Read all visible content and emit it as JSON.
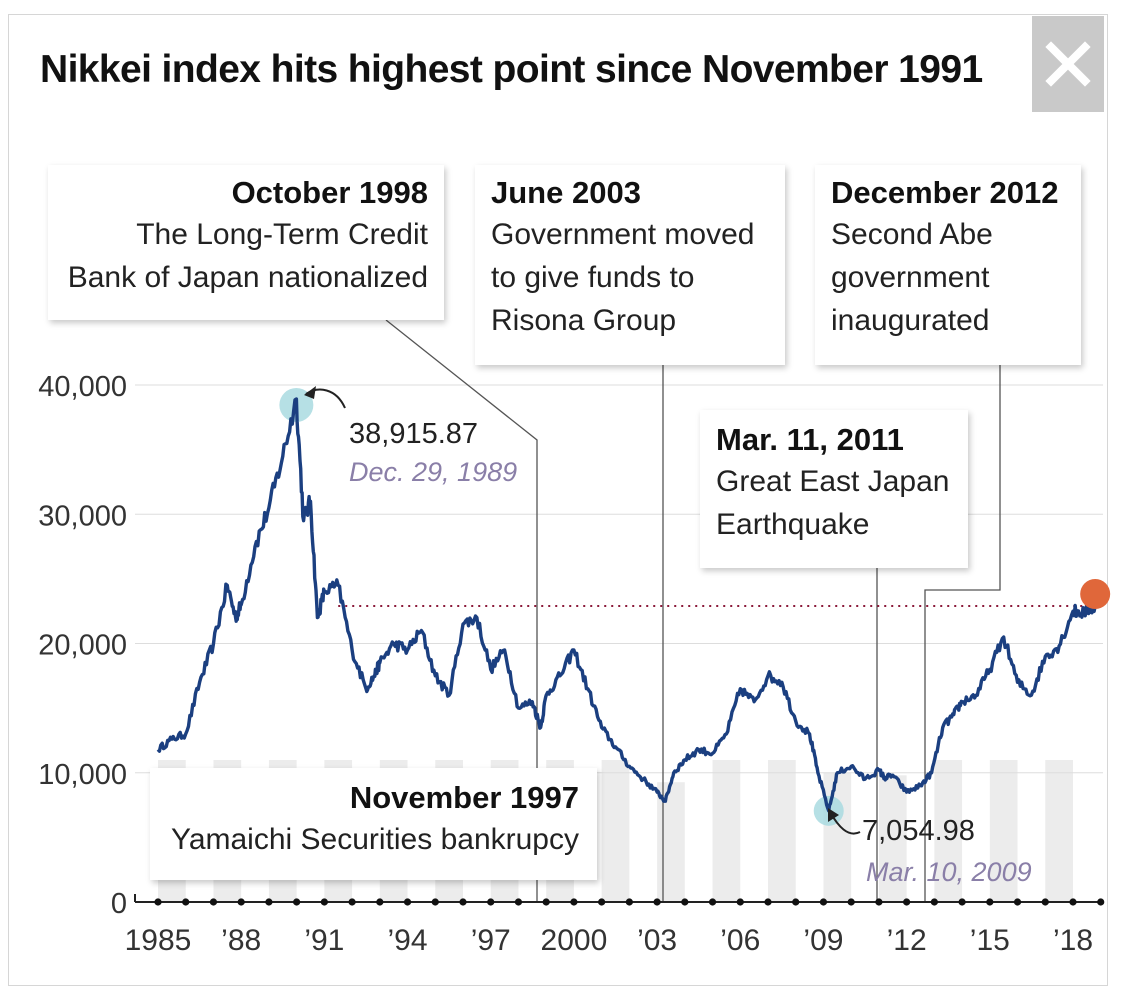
{
  "title": "Nikkei index hits highest point since November 1991",
  "close_icon": "close-icon",
  "callouts": {
    "oct1998": {
      "head": "October 1998",
      "body": "The Long-Term Credit\nBank of Japan nationalized"
    },
    "jun2003": {
      "head": "June 2003",
      "body": "Government moved\nto give funds to\nRisona Group"
    },
    "dec2012": {
      "head": "December 2012",
      "body": "Second Abe\ngovernment\ninaugurated"
    },
    "mar2011": {
      "head": "Mar. 11, 2011",
      "body": "Great East Japan\nEarthquake"
    },
    "nov1997": {
      "head": "November 1997",
      "body": "Yamaichi Securities bankrupcy"
    }
  },
  "annotations": {
    "peak": {
      "value": "38,915.87",
      "date": "Dec. 29, 1989"
    },
    "low": {
      "value": "7,054.98",
      "date": "Mar. 10, 2009"
    }
  },
  "colors": {
    "line": "#1b3f80",
    "peak_marker": "#a9dbe0",
    "current_marker": "#e0673a",
    "reference_line": "#8b1a3a",
    "year_band": "#ececec",
    "grid": "#dddddd"
  },
  "chart_data": {
    "type": "line",
    "title": "Nikkei index hits highest point since November 1991",
    "xlabel": "",
    "ylabel": "",
    "xlim": [
      1984.5,
      2019
    ],
    "ylim": [
      0,
      40000
    ],
    "y_ticks": [
      0,
      10000,
      20000,
      30000,
      40000
    ],
    "y_tick_labels": [
      "0",
      "10,000",
      "20,000",
      "30,000",
      "40,000"
    ],
    "x_ticks": [
      1985,
      1988,
      1991,
      1994,
      1997,
      2000,
      2003,
      2006,
      2009,
      2012,
      2015,
      2018
    ],
    "x_tick_labels": [
      "1985",
      "’88",
      "’91",
      "’94",
      "’97",
      "2000",
      "’03",
      "’06",
      "’09",
      "’12",
      "’15",
      "’18"
    ],
    "grid": true,
    "reference_line": {
      "y": 22900,
      "style": "dotted"
    },
    "series": [
      {
        "x": [
          1985.0,
          1985.5,
          1986.0,
          1986.5,
          1987.0,
          1987.5,
          1987.8,
          1988.0,
          1988.5,
          1989.0,
          1989.5,
          1989.99,
          1990.25,
          1990.5,
          1990.75,
          1991.0,
          1991.5,
          1992.0,
          1992.5,
          1992.8,
          1993.0,
          1993.5,
          1994.0,
          1994.5,
          1995.0,
          1995.5,
          1996.0,
          1996.5,
          1997.0,
          1997.5,
          1998.0,
          1998.5,
          1998.8,
          1999.0,
          1999.5,
          2000.0,
          2000.5,
          2001.0,
          2001.5,
          2002.0,
          2002.5,
          2003.0,
          2003.3,
          2003.6,
          2004.0,
          2004.5,
          2005.0,
          2005.5,
          2006.0,
          2006.5,
          2007.0,
          2007.5,
          2008.0,
          2008.5,
          2008.8,
          2009.19,
          2009.5,
          2010.0,
          2010.5,
          2011.0,
          2011.2,
          2011.5,
          2012.0,
          2012.5,
          2012.9,
          2013.3,
          2013.7,
          2014.0,
          2014.5,
          2015.0,
          2015.5,
          2016.0,
          2016.5,
          2017.0,
          2017.5,
          2018.0,
          2018.4,
          2018.8
        ],
        "values": [
          11800,
          12600,
          13000,
          17000,
          20000,
          24500,
          22000,
          23000,
          27500,
          30500,
          34500,
          38915.87,
          29500,
          31000,
          22000,
          24000,
          24500,
          19500,
          16500,
          17500,
          18500,
          20000,
          19500,
          21000,
          17500,
          16000,
          21500,
          22000,
          18000,
          19500,
          15000,
          15500,
          13500,
          16000,
          17500,
          19500,
          16500,
          13500,
          12000,
          10500,
          9500,
          8500,
          7800,
          10000,
          11000,
          11800,
          11500,
          13000,
          16500,
          15500,
          17500,
          17000,
          14000,
          13000,
          10000,
          7054.98,
          10000,
          10500,
          9500,
          10200,
          9600,
          9800,
          8500,
          9000,
          10000,
          13500,
          14500,
          15500,
          16000,
          18000,
          20500,
          17000,
          16000,
          19000,
          19800,
          22500,
          22400,
          22900
        ]
      }
    ]
  }
}
